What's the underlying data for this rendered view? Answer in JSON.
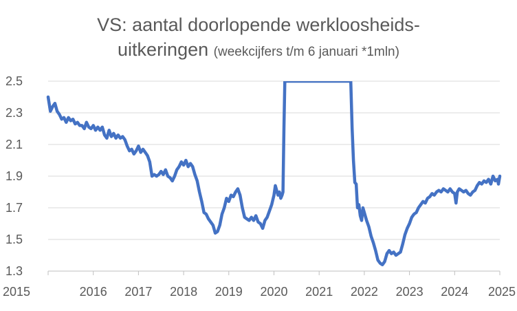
{
  "chart_data": {
    "type": "line",
    "title": "VS: aantal doorlopende werkloosheids-",
    "title_line2": "uitkeringen",
    "subtitle": "(weekcijfers t/m 6 januari *1mln)",
    "xlabel": "",
    "ylabel": "",
    "xlim": [
      2015,
      2025
    ],
    "ylim": [
      1.3,
      2.5
    ],
    "x_ticks": [
      "2015",
      "2016",
      "2017",
      "2018",
      "2019",
      "2020",
      "2021",
      "2022",
      "2023",
      "2024",
      "2025"
    ],
    "y_ticks": [
      "2.5",
      "2.3",
      "2.1",
      "1.9",
      "1.7",
      "1.5",
      "1.3"
    ],
    "grid": "horizontal",
    "legend": "none",
    "line_color": "#4472C4",
    "series": [
      {
        "points": [
          [
            2015.0,
            2.4
          ],
          [
            2015.05,
            2.31
          ],
          [
            2015.1,
            2.34
          ],
          [
            2015.15,
            2.36
          ],
          [
            2015.2,
            2.31
          ],
          [
            2015.25,
            2.29
          ],
          [
            2015.3,
            2.26
          ],
          [
            2015.35,
            2.27
          ],
          [
            2015.4,
            2.24
          ],
          [
            2015.45,
            2.27
          ],
          [
            2015.5,
            2.25
          ],
          [
            2015.55,
            2.26
          ],
          [
            2015.6,
            2.23
          ],
          [
            2015.65,
            2.24
          ],
          [
            2015.7,
            2.22
          ],
          [
            2015.75,
            2.22
          ],
          [
            2015.8,
            2.2
          ],
          [
            2015.85,
            2.24
          ],
          [
            2015.9,
            2.21
          ],
          [
            2015.95,
            2.2
          ],
          [
            2016.0,
            2.22
          ],
          [
            2016.05,
            2.19
          ],
          [
            2016.1,
            2.21
          ],
          [
            2016.15,
            2.19
          ],
          [
            2016.2,
            2.21
          ],
          [
            2016.25,
            2.16
          ],
          [
            2016.3,
            2.14
          ],
          [
            2016.35,
            2.19
          ],
          [
            2016.4,
            2.15
          ],
          [
            2016.45,
            2.17
          ],
          [
            2016.5,
            2.14
          ],
          [
            2016.55,
            2.16
          ],
          [
            2016.6,
            2.14
          ],
          [
            2016.65,
            2.15
          ],
          [
            2016.7,
            2.13
          ],
          [
            2016.75,
            2.09
          ],
          [
            2016.8,
            2.06
          ],
          [
            2016.85,
            2.07
          ],
          [
            2016.9,
            2.04
          ],
          [
            2016.95,
            2.06
          ],
          [
            2017.0,
            2.09
          ],
          [
            2017.05,
            2.05
          ],
          [
            2017.1,
            2.07
          ],
          [
            2017.15,
            2.05
          ],
          [
            2017.2,
            2.03
          ],
          [
            2017.25,
            1.99
          ],
          [
            2017.3,
            1.9
          ],
          [
            2017.35,
            1.91
          ],
          [
            2017.4,
            1.9
          ],
          [
            2017.45,
            1.91
          ],
          [
            2017.5,
            1.93
          ],
          [
            2017.55,
            1.91
          ],
          [
            2017.6,
            1.94
          ],
          [
            2017.65,
            1.9
          ],
          [
            2017.7,
            1.89
          ],
          [
            2017.75,
            1.87
          ],
          [
            2017.8,
            1.9
          ],
          [
            2017.85,
            1.94
          ],
          [
            2017.9,
            1.96
          ],
          [
            2017.95,
            1.99
          ],
          [
            2018.0,
            1.97
          ],
          [
            2018.05,
            2.0
          ],
          [
            2018.1,
            1.96
          ],
          [
            2018.15,
            1.98
          ],
          [
            2018.2,
            1.96
          ],
          [
            2018.25,
            1.91
          ],
          [
            2018.3,
            1.87
          ],
          [
            2018.35,
            1.8
          ],
          [
            2018.4,
            1.74
          ],
          [
            2018.45,
            1.67
          ],
          [
            2018.5,
            1.66
          ],
          [
            2018.55,
            1.63
          ],
          [
            2018.6,
            1.61
          ],
          [
            2018.65,
            1.59
          ],
          [
            2018.7,
            1.54
          ],
          [
            2018.75,
            1.55
          ],
          [
            2018.8,
            1.59
          ],
          [
            2018.85,
            1.66
          ],
          [
            2018.9,
            1.7
          ],
          [
            2018.95,
            1.76
          ],
          [
            2019.0,
            1.74
          ],
          [
            2019.05,
            1.78
          ],
          [
            2019.1,
            1.77
          ],
          [
            2019.15,
            1.8
          ],
          [
            2019.2,
            1.82
          ],
          [
            2019.25,
            1.78
          ],
          [
            2019.3,
            1.7
          ],
          [
            2019.35,
            1.64
          ],
          [
            2019.4,
            1.63
          ],
          [
            2019.45,
            1.62
          ],
          [
            2019.5,
            1.64
          ],
          [
            2019.55,
            1.62
          ],
          [
            2019.6,
            1.65
          ],
          [
            2019.65,
            1.61
          ],
          [
            2019.7,
            1.6
          ],
          [
            2019.75,
            1.57
          ],
          [
            2019.8,
            1.62
          ],
          [
            2019.85,
            1.64
          ],
          [
            2019.9,
            1.68
          ],
          [
            2019.95,
            1.72
          ],
          [
            2020.0,
            1.78
          ],
          [
            2020.03,
            1.84
          ],
          [
            2020.06,
            1.81
          ],
          [
            2020.09,
            1.78
          ],
          [
            2020.12,
            1.8
          ],
          [
            2020.15,
            1.76
          ],
          [
            2020.18,
            1.78
          ],
          [
            2020.2,
            1.8
          ],
          [
            2020.22,
            2.2
          ],
          [
            2020.24,
            2.5
          ],
          [
            2021.7,
            2.5
          ],
          [
            2021.73,
            2.2
          ],
          [
            2021.76,
            2.0
          ],
          [
            2021.79,
            1.86
          ],
          [
            2021.82,
            1.85
          ],
          [
            2021.85,
            1.7
          ],
          [
            2021.88,
            1.72
          ],
          [
            2021.91,
            1.65
          ],
          [
            2021.94,
            1.62
          ],
          [
            2021.97,
            1.7
          ],
          [
            2022.0,
            1.67
          ],
          [
            2022.05,
            1.62
          ],
          [
            2022.1,
            1.58
          ],
          [
            2022.15,
            1.52
          ],
          [
            2022.2,
            1.48
          ],
          [
            2022.25,
            1.43
          ],
          [
            2022.3,
            1.37
          ],
          [
            2022.35,
            1.35
          ],
          [
            2022.4,
            1.34
          ],
          [
            2022.45,
            1.36
          ],
          [
            2022.5,
            1.41
          ],
          [
            2022.55,
            1.43
          ],
          [
            2022.6,
            1.41
          ],
          [
            2022.65,
            1.42
          ],
          [
            2022.7,
            1.4
          ],
          [
            2022.75,
            1.41
          ],
          [
            2022.8,
            1.42
          ],
          [
            2022.85,
            1.47
          ],
          [
            2022.9,
            1.53
          ],
          [
            2022.95,
            1.57
          ],
          [
            2023.0,
            1.6
          ],
          [
            2023.05,
            1.64
          ],
          [
            2023.1,
            1.66
          ],
          [
            2023.15,
            1.67
          ],
          [
            2023.2,
            1.7
          ],
          [
            2023.25,
            1.72
          ],
          [
            2023.3,
            1.74
          ],
          [
            2023.35,
            1.73
          ],
          [
            2023.4,
            1.76
          ],
          [
            2023.45,
            1.77
          ],
          [
            2023.5,
            1.79
          ],
          [
            2023.55,
            1.78
          ],
          [
            2023.6,
            1.8
          ],
          [
            2023.65,
            1.81
          ],
          [
            2023.7,
            1.8
          ],
          [
            2023.75,
            1.82
          ],
          [
            2023.8,
            1.81
          ],
          [
            2023.85,
            1.8
          ],
          [
            2023.9,
            1.82
          ],
          [
            2023.95,
            1.8
          ],
          [
            2024.0,
            1.79
          ],
          [
            2024.03,
            1.73
          ],
          [
            2024.06,
            1.8
          ],
          [
            2024.1,
            1.82
          ],
          [
            2024.15,
            1.81
          ],
          [
            2024.2,
            1.8
          ],
          [
            2024.25,
            1.81
          ],
          [
            2024.3,
            1.79
          ],
          [
            2024.35,
            1.78
          ],
          [
            2024.4,
            1.8
          ],
          [
            2024.45,
            1.81
          ],
          [
            2024.5,
            1.84
          ],
          [
            2024.55,
            1.86
          ],
          [
            2024.6,
            1.85
          ],
          [
            2024.65,
            1.87
          ],
          [
            2024.7,
            1.86
          ],
          [
            2024.75,
            1.88
          ],
          [
            2024.8,
            1.85
          ],
          [
            2024.85,
            1.9
          ],
          [
            2024.9,
            1.87
          ],
          [
            2024.95,
            1.88
          ],
          [
            2024.97,
            1.85
          ],
          [
            2025.0,
            1.9
          ]
        ]
      }
    ]
  }
}
